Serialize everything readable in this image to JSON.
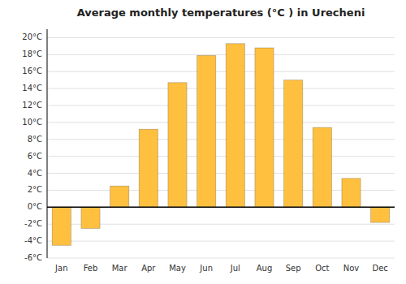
{
  "chart_data": {
    "type": "bar",
    "title": "Average monthly temperatures (°C ) in Urecheni",
    "categories": [
      "Jan",
      "Feb",
      "Mar",
      "Apr",
      "May",
      "Jun",
      "Jul",
      "Aug",
      "Sep",
      "Oct",
      "Nov",
      "Dec"
    ],
    "values": [
      -4.5,
      -2.5,
      2.5,
      9.2,
      14.7,
      17.9,
      19.3,
      18.8,
      15.0,
      9.4,
      3.4,
      -1.8
    ],
    "color": "#FFC040",
    "ylim": [
      -6,
      21
    ],
    "yticks": [
      {
        "value": -6,
        "label": "-6°C"
      },
      {
        "value": -4,
        "label": "-4°C"
      },
      {
        "value": -2,
        "label": "-2°C"
      },
      {
        "value": 0,
        "label": "0°C"
      },
      {
        "value": 2,
        "label": "2°C"
      },
      {
        "value": 4,
        "label": "4°C"
      },
      {
        "value": 6,
        "label": "6°C"
      },
      {
        "value": 8,
        "label": "8°C"
      },
      {
        "value": 10,
        "label": "10°C"
      },
      {
        "value": 12,
        "label": "12°C"
      },
      {
        "value": 14,
        "label": "14°C"
      },
      {
        "value": 16,
        "label": "16°C"
      },
      {
        "value": 18,
        "label": "18°C"
      },
      {
        "value": 20,
        "label": "20°C"
      }
    ],
    "grid": true
  }
}
